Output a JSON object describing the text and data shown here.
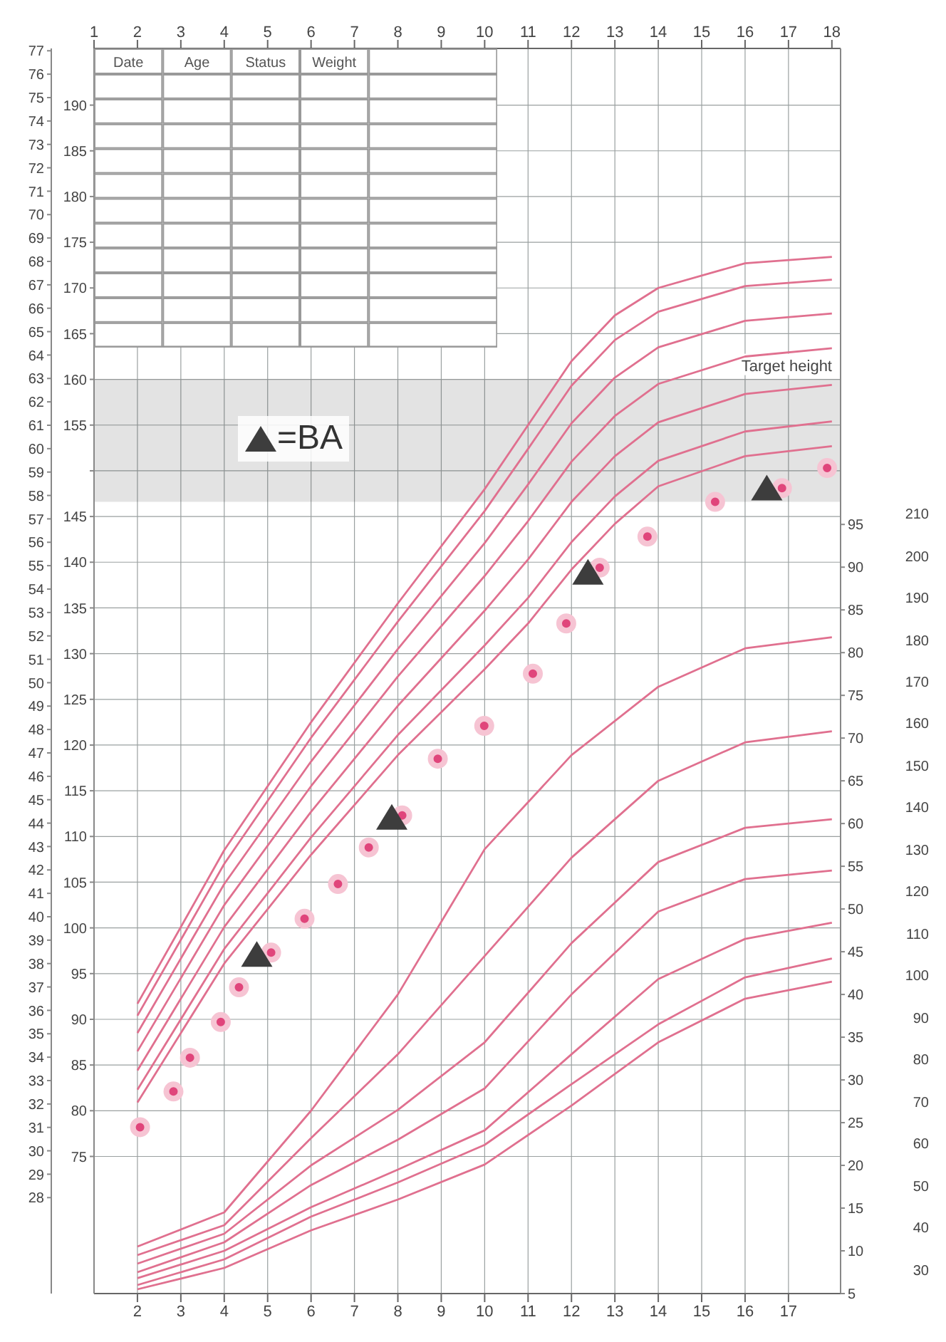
{
  "chart_data": {
    "type": "line",
    "annotations": [
      "Date",
      "Age",
      "Status",
      "Weight",
      "30",
      "40",
      "50",
      "60",
      "70",
      "80",
      "90",
      "100",
      "110",
      "120",
      "130",
      "140",
      "150",
      "160",
      "170",
      "180",
      "190",
      "200",
      "210"
    ],
    "xlim": [
      1,
      18.2
    ],
    "xticks": [
      2,
      3,
      4,
      5,
      6,
      7,
      8,
      9,
      10,
      11,
      12,
      13,
      14,
      15,
      16,
      17
    ],
    "x2lim": [
      1,
      18.2
    ],
    "x2ticks": [
      1,
      2,
      3,
      4,
      5,
      6,
      7,
      8,
      9,
      10,
      11,
      12,
      13,
      14,
      15,
      16,
      17,
      18
    ],
    "ylim": [
      60,
      196.2
    ],
    "yticks": [
      75,
      80,
      85,
      90,
      95,
      100,
      105,
      110,
      115,
      120,
      125,
      130,
      135,
      140,
      145,
      {
        "value": 150,
        "label": null
      },
      155,
      160,
      165,
      170,
      175,
      180,
      185,
      190
    ],
    "y2lim": [
      5,
      150.7
    ],
    "y2ticks": [
      5,
      10,
      15,
      20,
      25,
      30,
      35,
      40,
      45,
      50,
      55,
      60,
      65,
      70,
      75,
      80,
      85,
      90,
      95
    ],
    "y3lim": [
      23.9,
      77.1
    ],
    "y3ticks": [
      28,
      29,
      30,
      31,
      32,
      33,
      34,
      35,
      36,
      37,
      38,
      39,
      40,
      41,
      42,
      43,
      44,
      45,
      46,
      47,
      48,
      49,
      50,
      51,
      52,
      53,
      54,
      55,
      56,
      57,
      58,
      59,
      60,
      61,
      62,
      63,
      64,
      65,
      66,
      67,
      68,
      69,
      70,
      71,
      72,
      73,
      74,
      75,
      76,
      77
    ],
    "grid": true,
    "legend": "top left",
    "bands": [
      {
        "axis": "y",
        "from": 146.6,
        "to": 160,
        "label": "Target height",
        "color": "#3a3a3a"
      }
    ],
    "series": [
      {
        "color": "#e0708f",
        "x": [
          2,
          4,
          6,
          8,
          10,
          11,
          12,
          13,
          14,
          16,
          18
        ],
        "values": [
          91.7,
          108.5,
          122.5,
          135.5,
          148,
          155,
          162,
          167,
          170,
          172.7,
          173.4
        ]
      },
      {
        "color": "#e0708f",
        "x": [
          2,
          4,
          6,
          8,
          10,
          11,
          12,
          13,
          14,
          16,
          18
        ],
        "values": [
          90.4,
          107,
          120.8,
          133.5,
          145.6,
          152.4,
          159.3,
          164.3,
          167.4,
          170.2,
          170.9
        ]
      },
      {
        "color": "#e0708f",
        "x": [
          2,
          4,
          6,
          8,
          10,
          11,
          12,
          13,
          14,
          16,
          18
        ],
        "values": [
          88.5,
          104.8,
          118.2,
          130.5,
          142.1,
          148.5,
          155.2,
          160.2,
          163.5,
          166.4,
          167.2
        ]
      },
      {
        "color": "#e0708f",
        "x": [
          2,
          4,
          6,
          8,
          10,
          11,
          12,
          13,
          14,
          16,
          18
        ],
        "values": [
          86.5,
          102.5,
          115.5,
          127.5,
          138.5,
          144.5,
          151,
          156,
          159.5,
          162.5,
          163.4
        ]
      },
      {
        "color": "#e0708f",
        "x": [
          2,
          4,
          6,
          8,
          10,
          11,
          12,
          13,
          14,
          16,
          18
        ],
        "values": [
          84.4,
          100.1,
          112.7,
          124.3,
          134.7,
          140.3,
          146.6,
          151.6,
          155.3,
          158.4,
          159.4
        ]
      },
      {
        "color": "#e0708f",
        "x": [
          2,
          4,
          6,
          8,
          10,
          11,
          12,
          13,
          14,
          16,
          18
        ],
        "values": [
          82.3,
          97.7,
          109.9,
          121.1,
          130.9,
          136.1,
          142.2,
          147.2,
          151.1,
          154.3,
          155.4
        ]
      },
      {
        "color": "#e0708f",
        "x": [
          2,
          4,
          6,
          8,
          10,
          11,
          12,
          13,
          14,
          16,
          18
        ],
        "values": [
          80.9,
          96.1,
          108,
          118.9,
          128.3,
          133.3,
          139.2,
          144.2,
          148.3,
          151.6,
          152.7
        ]
      },
      {
        "axis": "y2",
        "color": "#e0708f",
        "x": [
          2,
          4,
          6,
          8,
          10,
          12,
          14,
          16,
          18
        ],
        "values": [
          10.5,
          14.5,
          26.4,
          40,
          57,
          68,
          76,
          80.5,
          81.8
        ]
      },
      {
        "axis": "y2",
        "color": "#e0708f",
        "x": [
          2,
          4,
          6,
          8,
          10,
          12,
          14,
          16,
          18
        ],
        "values": [
          9.5,
          13,
          23.2,
          33,
          44.5,
          56,
          65,
          69.5,
          70.8
        ]
      },
      {
        "axis": "y2",
        "color": "#e0708f",
        "x": [
          2,
          4,
          6,
          8,
          10,
          12,
          14,
          16,
          18
        ],
        "values": [
          8.5,
          12,
          20,
          26.5,
          34.4,
          46,
          55.5,
          59.5,
          60.5
        ]
      },
      {
        "axis": "y2",
        "color": "#e0708f",
        "x": [
          2,
          4,
          6,
          8,
          10,
          12,
          14,
          16,
          18
        ],
        "values": [
          7.5,
          11,
          17.7,
          23,
          29,
          40,
          49.7,
          53.5,
          54.5
        ]
      },
      {
        "axis": "y2",
        "color": "#e0708f",
        "x": [
          2,
          4,
          6,
          8,
          10,
          12,
          14,
          16,
          18
        ],
        "values": [
          6.8,
          10,
          15.1,
          19.5,
          24.1,
          33,
          41.8,
          46.5,
          48.4
        ]
      },
      {
        "axis": "y2",
        "color": "#e0708f",
        "x": [
          2,
          4,
          6,
          8,
          10,
          12,
          14,
          16,
          18
        ],
        "values": [
          6,
          9,
          14,
          18,
          22.4,
          29.5,
          36.5,
          42,
          44.2
        ]
      },
      {
        "axis": "y2",
        "color": "#e0708f",
        "x": [
          2,
          4,
          6,
          8,
          10,
          12,
          14,
          16,
          18
        ],
        "values": [
          5.5,
          8,
          12.4,
          16,
          20.1,
          27,
          34.4,
          39.5,
          41.5
        ]
      },
      {
        "type": "scatter",
        "marker": "circle",
        "color": "#e0457b",
        "x": [
          2.06,
          2.83,
          3.21,
          3.92,
          4.34,
          5.08,
          5.85,
          6.62,
          7.33,
          8.1,
          8.92,
          9.99,
          11.11,
          11.88,
          12.65,
          13.75,
          15.31,
          16.85,
          17.89
        ],
        "values": [
          78.2,
          82.1,
          85.8,
          89.7,
          93.5,
          97.3,
          101,
          104.8,
          108.8,
          112.3,
          118.5,
          122.1,
          127.8,
          133.3,
          139.4,
          142.8,
          146.6,
          148.1,
          150.3
        ]
      },
      {
        "type": "scatter",
        "marker": "triangle",
        "name": "=BA",
        "color": "#3d3d3d",
        "x": [
          4.75,
          7.86,
          12.38,
          16.5
        ],
        "values": [
          97,
          112,
          138.8,
          148
        ]
      }
    ]
  }
}
